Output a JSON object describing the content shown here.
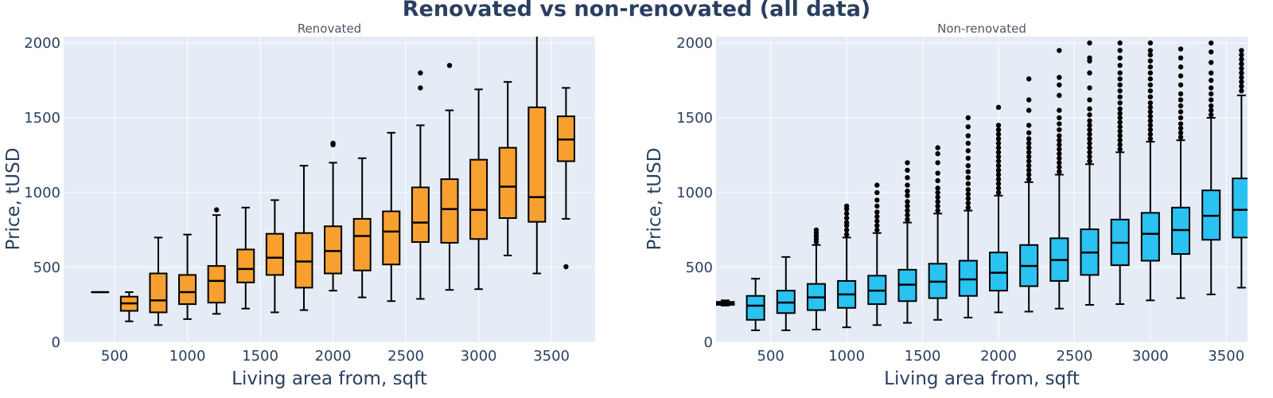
{
  "figure": {
    "title": "Renovated vs non-renovated (all data)"
  },
  "chart_data": [
    {
      "type": "box",
      "title": "Renovated",
      "xlabel": "Living area from, sqft",
      "ylabel": "Price, tUSD",
      "xlim": [
        150,
        3800
      ],
      "ylim": [
        0,
        2000
      ],
      "x_ticks": [
        500,
        1000,
        1500,
        2000,
        2500,
        3000,
        3500
      ],
      "y_ticks": [
        0,
        500,
        1000,
        1500,
        2000
      ],
      "color": "#f7a030",
      "boxes": [
        {
          "x": 400,
          "min": 335,
          "q1": 335,
          "median": 335,
          "q3": 335,
          "max": 335,
          "outliers": []
        },
        {
          "x": 600,
          "min": 140,
          "q1": 210,
          "median": 260,
          "q3": 305,
          "max": 335,
          "outliers": []
        },
        {
          "x": 800,
          "min": 115,
          "q1": 200,
          "median": 280,
          "q3": 460,
          "max": 700,
          "outliers": []
        },
        {
          "x": 1000,
          "min": 155,
          "q1": 255,
          "median": 335,
          "q3": 450,
          "max": 720,
          "outliers": []
        },
        {
          "x": 1200,
          "min": 190,
          "q1": 265,
          "median": 410,
          "q3": 510,
          "max": 850,
          "outliers": [
            885
          ]
        },
        {
          "x": 1400,
          "min": 225,
          "q1": 400,
          "median": 490,
          "q3": 620,
          "max": 900,
          "outliers": []
        },
        {
          "x": 1600,
          "min": 200,
          "q1": 450,
          "median": 565,
          "q3": 725,
          "max": 950,
          "outliers": []
        },
        {
          "x": 1800,
          "min": 215,
          "q1": 365,
          "median": 540,
          "q3": 730,
          "max": 1180,
          "outliers": []
        },
        {
          "x": 2000,
          "min": 345,
          "q1": 460,
          "median": 610,
          "q3": 775,
          "max": 1200,
          "outliers": [
            1320,
            1330
          ]
        },
        {
          "x": 2200,
          "min": 300,
          "q1": 480,
          "median": 710,
          "q3": 825,
          "max": 1230,
          "outliers": []
        },
        {
          "x": 2400,
          "min": 275,
          "q1": 520,
          "median": 740,
          "q3": 875,
          "max": 1400,
          "outliers": []
        },
        {
          "x": 2600,
          "min": 290,
          "q1": 670,
          "median": 800,
          "q3": 1035,
          "max": 1450,
          "outliers": [
            1700,
            1800
          ]
        },
        {
          "x": 2800,
          "min": 350,
          "q1": 665,
          "median": 890,
          "q3": 1090,
          "max": 1550,
          "outliers": [
            1850
          ]
        },
        {
          "x": 3000,
          "min": 355,
          "q1": 690,
          "median": 885,
          "q3": 1220,
          "max": 1690,
          "outliers": []
        },
        {
          "x": 3200,
          "min": 580,
          "q1": 830,
          "median": 1040,
          "q3": 1300,
          "max": 1740,
          "outliers": []
        },
        {
          "x": 3400,
          "min": 460,
          "q1": 805,
          "median": 970,
          "q3": 1570,
          "max": 2050,
          "outliers": []
        },
        {
          "x": 3600,
          "min": 825,
          "q1": 1210,
          "median": 1355,
          "q3": 1510,
          "max": 1700,
          "outliers": [
            505
          ]
        }
      ]
    },
    {
      "type": "box",
      "title": "Non-renovated",
      "xlabel": "Living area from, sqft",
      "ylabel": "Price, tUSD",
      "xlim": [
        140,
        3640
      ],
      "ylim": [
        0,
        2000
      ],
      "x_ticks": [
        500,
        1000,
        1500,
        2000,
        2500,
        3000,
        3500
      ],
      "y_ticks": [
        0,
        500,
        1000,
        1500,
        2000
      ],
      "color": "#2ac2f0",
      "boxes": [
        {
          "x": 200,
          "min": 245,
          "q1": 250,
          "median": 260,
          "q3": 270,
          "max": 280,
          "outliers": []
        },
        {
          "x": 400,
          "min": 80,
          "q1": 150,
          "median": 245,
          "q3": 310,
          "max": 425,
          "outliers": []
        },
        {
          "x": 600,
          "min": 80,
          "q1": 195,
          "median": 265,
          "q3": 345,
          "max": 570,
          "outliers": []
        },
        {
          "x": 800,
          "min": 85,
          "q1": 215,
          "median": 300,
          "q3": 390,
          "max": 650,
          "outliers": [
            670,
            690,
            710,
            730,
            750
          ]
        },
        {
          "x": 1000,
          "min": 100,
          "q1": 230,
          "median": 320,
          "q3": 410,
          "max": 700,
          "outliers": [
            720,
            750,
            780,
            800,
            830,
            860,
            890,
            910
          ]
        },
        {
          "x": 1200,
          "min": 115,
          "q1": 255,
          "median": 345,
          "q3": 445,
          "max": 730,
          "outliers": [
            750,
            780,
            810,
            840,
            870,
            910,
            950,
            1000,
            1050
          ]
        },
        {
          "x": 1400,
          "min": 130,
          "q1": 275,
          "median": 385,
          "q3": 485,
          "max": 800,
          "outliers": [
            820,
            850,
            880,
            910,
            940,
            980,
            1010,
            1050,
            1100,
            1150,
            1200
          ]
        },
        {
          "x": 1600,
          "min": 150,
          "q1": 295,
          "median": 405,
          "q3": 525,
          "max": 860,
          "outliers": [
            880,
            910,
            940,
            970,
            1000,
            1030,
            1080,
            1130,
            1200,
            1260,
            1300
          ]
        },
        {
          "x": 1800,
          "min": 165,
          "q1": 310,
          "median": 420,
          "q3": 545,
          "max": 880,
          "outliers": [
            900,
            930,
            960,
            990,
            1020,
            1060,
            1100,
            1140,
            1180,
            1230,
            1280,
            1330,
            1380,
            1440,
            1500
          ]
        },
        {
          "x": 2000,
          "min": 200,
          "q1": 345,
          "median": 465,
          "q3": 600,
          "max": 980,
          "outliers": [
            1000,
            1030,
            1060,
            1090,
            1120,
            1150,
            1180,
            1210,
            1240,
            1270,
            1300,
            1330,
            1360,
            1390,
            1420,
            1450,
            1570
          ]
        },
        {
          "x": 2200,
          "min": 205,
          "q1": 375,
          "median": 510,
          "q3": 650,
          "max": 1070,
          "outliers": [
            1090,
            1120,
            1150,
            1180,
            1210,
            1240,
            1270,
            1300,
            1330,
            1360,
            1400,
            1450,
            1550,
            1620,
            1760
          ]
        },
        {
          "x": 2400,
          "min": 225,
          "q1": 410,
          "median": 550,
          "q3": 695,
          "max": 1120,
          "outliers": [
            1140,
            1170,
            1200,
            1230,
            1260,
            1290,
            1320,
            1350,
            1380,
            1420,
            1460,
            1500,
            1550,
            1650,
            1720,
            1770,
            1950
          ]
        },
        {
          "x": 2600,
          "min": 250,
          "q1": 450,
          "median": 600,
          "q3": 755,
          "max": 1190,
          "outliers": [
            1210,
            1240,
            1270,
            1300,
            1330,
            1360,
            1390,
            1420,
            1450,
            1480,
            1520,
            1560,
            1620,
            1700,
            1800,
            1880,
            1900,
            2000
          ]
        },
        {
          "x": 2800,
          "min": 255,
          "q1": 515,
          "median": 665,
          "q3": 820,
          "max": 1270,
          "outliers": [
            1290,
            1320,
            1350,
            1380,
            1410,
            1440,
            1470,
            1500,
            1530,
            1560,
            1600,
            1640,
            1680,
            1720,
            1760,
            1800,
            1850,
            1900,
            1950,
            2000
          ]
        },
        {
          "x": 3000,
          "min": 280,
          "q1": 545,
          "median": 725,
          "q3": 865,
          "max": 1340,
          "outliers": [
            1360,
            1390,
            1420,
            1450,
            1480,
            1510,
            1540,
            1570,
            1600,
            1640,
            1680,
            1720,
            1760,
            1800,
            1840,
            1880,
            1920,
            1950,
            2000
          ]
        },
        {
          "x": 3200,
          "min": 295,
          "q1": 590,
          "median": 750,
          "q3": 900,
          "max": 1350,
          "outliers": [
            1370,
            1400,
            1430,
            1460,
            1500,
            1540,
            1580,
            1620,
            1660,
            1720,
            1780,
            1840,
            1900,
            1960
          ]
        },
        {
          "x": 3400,
          "min": 320,
          "q1": 685,
          "median": 845,
          "q3": 1015,
          "max": 1500,
          "outliers": [
            1520,
            1550,
            1580,
            1620,
            1660,
            1700,
            1750,
            1800,
            1870,
            1940,
            2000
          ]
        },
        {
          "x": 3600,
          "min": 365,
          "q1": 700,
          "median": 885,
          "q3": 1095,
          "max": 1650,
          "outliers": [
            1680,
            1710,
            1740,
            1770,
            1800,
            1830,
            1860,
            1890,
            1920,
            1950
          ]
        }
      ]
    }
  ]
}
